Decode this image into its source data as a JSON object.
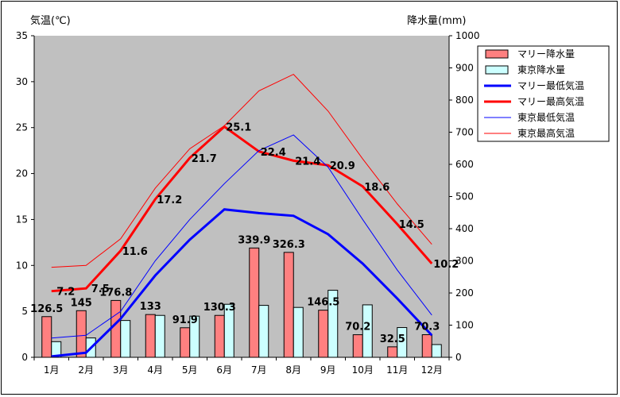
{
  "chart_data": {
    "type": "bar",
    "ylabel_left": "気温(℃)",
    "ylabel_right": "降水量(mm)",
    "categories": [
      "1月",
      "2月",
      "3月",
      "4月",
      "5月",
      "6月",
      "7月",
      "8月",
      "9月",
      "10月",
      "11月",
      "12月"
    ],
    "left_axis": {
      "range": [
        0,
        35
      ],
      "ticks": [
        "0",
        "5",
        "10",
        "15",
        "20",
        "25",
        "30",
        "35"
      ]
    },
    "right_axis": {
      "range": [
        0,
        1000
      ],
      "ticks": [
        "0",
        "100",
        "200",
        "300",
        "400",
        "500",
        "600",
        "700",
        "800",
        "900",
        "1000"
      ]
    },
    "series": [
      {
        "name": "マリー降水量",
        "type": "bar",
        "axis": "right",
        "color": "#ff8080",
        "values": [
          126.5,
          145,
          176.8,
          133,
          91.9,
          130.3,
          339.9,
          326.3,
          146.5,
          70.2,
          32.5,
          70.3
        ],
        "labels": [
          "126.5",
          "145",
          "176.8",
          "133",
          "91.9",
          "130.3",
          "339.9",
          "326.3",
          "146.5",
          "70.2",
          "32.5",
          "70.3"
        ]
      },
      {
        "name": "東京降水量",
        "type": "bar",
        "axis": "right",
        "color": "#ccffff",
        "values": [
          48.6,
          60.2,
          114.5,
          130.3,
          128,
          164.9,
          161.5,
          155.1,
          208.5,
          163.1,
          92.5,
          39.6
        ]
      },
      {
        "name": "マリー最低気温",
        "type": "line",
        "axis": "left",
        "color": "#0000ff",
        "bold": true,
        "values": [
          0.1,
          0.5,
          4.2,
          8.9,
          12.8,
          16.1,
          15.7,
          15.4,
          13.4,
          10.2,
          6.4,
          2.4
        ]
      },
      {
        "name": "マリー最高気温",
        "type": "line",
        "axis": "left",
        "color": "#ff0000",
        "bold": true,
        "values": [
          7.2,
          7.5,
          11.6,
          17.2,
          21.7,
          25.1,
          22.4,
          21.4,
          20.9,
          18.6,
          14.5,
          10.2
        ],
        "labels": [
          "7.2",
          "7.5",
          "11.6",
          "17.2",
          "21.7",
          "25.1",
          "22.4",
          "21.4",
          "20.9",
          "18.6",
          "14.5",
          "10.2"
        ]
      },
      {
        "name": "東京最低気温",
        "type": "line",
        "axis": "left",
        "color": "#0000ff",
        "bold": false,
        "values": [
          2.1,
          2.4,
          5.0,
          10.5,
          15.0,
          18.9,
          22.5,
          24.2,
          20.7,
          15.0,
          9.5,
          4.6
        ]
      },
      {
        "name": "東京最高気温",
        "type": "line",
        "axis": "left",
        "color": "#ff0000",
        "bold": false,
        "values": [
          9.8,
          10.0,
          12.9,
          18.4,
          22.7,
          25.2,
          29.0,
          30.8,
          26.8,
          21.6,
          16.7,
          12.3
        ]
      }
    ],
    "plot_background": "#c0c0c0",
    "legend_position": "right"
  }
}
